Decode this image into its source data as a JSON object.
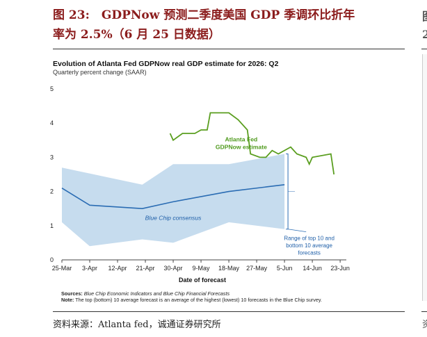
{
  "report": {
    "title_line1": "图 23:　GDPNow 预测二季度美国 GDP 季调环比折年",
    "title_line2": "率为 2.5%（6 月 25 日数据）",
    "source": "资料来源：Atlanta fed，诚通证券研究所",
    "right_edge_glyph_top": "图",
    "right_edge_glyph_mid": "2",
    "right_edge_glyph_bottom": "资"
  },
  "chart_data": {
    "type": "line",
    "title": "Evolution of Atlanta Fed GDPNow real GDP estimate for 2026: Q2",
    "subtitle": "Quarterly percent change (SAAR)",
    "xlabel": "Date of forecast",
    "ylabel": "",
    "ylim": [
      0,
      5
    ],
    "xlim": [
      0,
      92
    ],
    "y_ticks": [
      0,
      1,
      2,
      3,
      4,
      5
    ],
    "x_ticks": [
      {
        "label": "25-Mar",
        "day": 0
      },
      {
        "label": "3-Apr",
        "day": 9
      },
      {
        "label": "12-Apr",
        "day": 18
      },
      {
        "label": "21-Apr",
        "day": 27
      },
      {
        "label": "30-Apr",
        "day": 36
      },
      {
        "label": "9-May",
        "day": 45
      },
      {
        "label": "18-May",
        "day": 54
      },
      {
        "label": "27-May",
        "day": 63
      },
      {
        "label": "5-Jun",
        "day": 72
      },
      {
        "label": "14-Jun",
        "day": 81
      },
      {
        "label": "23-Jun",
        "day": 90
      }
    ],
    "grid": false,
    "series": [
      {
        "name": "Atlanta Fed GDPNow estimate",
        "color": "#5a9e1f",
        "points": [
          [
            35,
            3.7
          ],
          [
            36,
            3.5
          ],
          [
            39,
            3.7
          ],
          [
            43,
            3.7
          ],
          [
            45,
            3.8
          ],
          [
            47,
            3.8
          ],
          [
            48,
            4.3
          ],
          [
            54,
            4.3
          ],
          [
            57,
            4.1
          ],
          [
            60,
            3.8
          ],
          [
            61,
            3.1
          ],
          [
            64,
            3.0
          ],
          [
            66,
            3.0
          ],
          [
            68,
            3.2
          ],
          [
            70,
            3.1
          ],
          [
            74,
            3.3
          ],
          [
            76,
            3.1
          ],
          [
            79,
            3.0
          ],
          [
            80,
            2.8
          ],
          [
            81,
            3.0
          ],
          [
            87,
            3.1
          ],
          [
            88,
            2.5
          ]
        ]
      },
      {
        "name": "Blue Chip consensus",
        "color": "#2a6cb3",
        "points": [
          [
            0,
            2.1
          ],
          [
            9,
            1.6
          ],
          [
            26,
            1.5
          ],
          [
            36,
            1.7
          ],
          [
            54,
            2.0
          ],
          [
            72,
            2.2
          ]
        ]
      }
    ],
    "band": {
      "name": "Range of top 10 and bottom 10 average forecasts",
      "color": "#c6dcee",
      "upper": [
        [
          0,
          2.7
        ],
        [
          26,
          2.2
        ],
        [
          36,
          2.8
        ],
        [
          54,
          2.8
        ],
        [
          72,
          3.1
        ]
      ],
      "lower": [
        [
          0,
          1.1
        ],
        [
          9,
          0.4
        ],
        [
          26,
          0.6
        ],
        [
          36,
          0.5
        ],
        [
          54,
          1.1
        ],
        [
          72,
          0.9
        ]
      ]
    },
    "annotations": [
      {
        "text_lines": [
          "Atlanta Fed",
          "GDPNow estimate"
        ],
        "color": "#4f9a1d"
      },
      {
        "text_lines": [
          "Blue Chip consensus"
        ],
        "color": "#1f5fa8"
      },
      {
        "text_lines": [
          "Range of top 10 and",
          "bottom 10 average",
          "forecasts"
        ],
        "color": "#1f5fa8"
      }
    ],
    "notes": {
      "sources_label": "Sources:",
      "sources_text": " Blue Chip Economic Indicators and Blue Chip Financial Forecasts",
      "note_label": "Note:",
      "note_text": " The top (bottom) 10 average forecast is an average of the highest (lowest) 10 forecasts in the Blue Chip survey."
    }
  }
}
